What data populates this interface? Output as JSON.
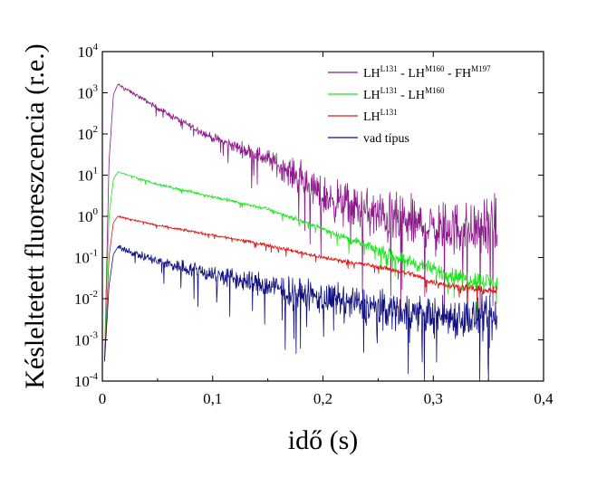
{
  "chart_data": {
    "type": "line",
    "title": "",
    "xlabel": "idő (s)",
    "ylabel": "Késleltetett fluoreszcencia (r.e.)",
    "xlim": [
      0,
      0.4
    ],
    "ylim": [
      0.0001,
      10000
    ],
    "y_scale": "log",
    "x_ticks": [
      {
        "value": 0,
        "label": "0"
      },
      {
        "value": 0.1,
        "label": "0,1"
      },
      {
        "value": 0.2,
        "label": "0,2"
      },
      {
        "value": 0.3,
        "label": "0,3"
      },
      {
        "value": 0.4,
        "label": "0,4"
      }
    ],
    "y_ticks": [
      {
        "value": 0.0001,
        "base": "10",
        "exp": "-4"
      },
      {
        "value": 0.001,
        "base": "10",
        "exp": "-3"
      },
      {
        "value": 0.01,
        "base": "10",
        "exp": "-2"
      },
      {
        "value": 0.1,
        "base": "10",
        "exp": "-1"
      },
      {
        "value": 1,
        "base": "10",
        "exp": "0"
      },
      {
        "value": 10,
        "base": "10",
        "exp": "1"
      },
      {
        "value": 100,
        "base": "10",
        "exp": "2"
      },
      {
        "value": 1000,
        "base": "10",
        "exp": "3"
      },
      {
        "value": 10000,
        "base": "10",
        "exp": "4"
      }
    ],
    "grid": false,
    "legend_position": "top-right",
    "series": [
      {
        "name": "LH<sup>L131</sup> - LH<sup>M160</sup> - FH<sup>M197</sup>",
        "legend_parts": [
          {
            "text": "LH",
            "sup": false
          },
          {
            "text": "L131",
            "sup": true
          },
          {
            "text": " - LH",
            "sup": false
          },
          {
            "text": "M160",
            "sup": true
          },
          {
            "text": " - FH",
            "sup": false
          },
          {
            "text": "M197",
            "sup": true
          }
        ],
        "color": "#8b1a8b",
        "points": [
          [
            0.002,
            0.0003
          ],
          [
            0.006,
            20
          ],
          [
            0.01,
            900
          ],
          [
            0.014,
            1600
          ],
          [
            0.03,
            900
          ],
          [
            0.06,
            300
          ],
          [
            0.1,
            80
          ],
          [
            0.15,
            25
          ],
          [
            0.18,
            8
          ],
          [
            0.2,
            3
          ],
          [
            0.25,
            1
          ],
          [
            0.3,
            0.5
          ],
          [
            0.33,
            0.5
          ],
          [
            0.358,
            0.5
          ]
        ],
        "noise_decades": [
          [
            0.014,
            0.05
          ],
          [
            0.1,
            0.15
          ],
          [
            0.15,
            0.35
          ],
          [
            0.2,
            0.7
          ],
          [
            0.25,
            0.9
          ],
          [
            0.358,
            1.0
          ]
        ]
      },
      {
        "name": "LH<sup>L131</sup> - LH<sup>M160</sup>",
        "legend_parts": [
          {
            "text": "LH",
            "sup": false
          },
          {
            "text": "L131",
            "sup": true
          },
          {
            "text": " - LH",
            "sup": false
          },
          {
            "text": "M160",
            "sup": true
          }
        ],
        "color": "#1fe51f",
        "points": [
          [
            0.002,
            0.0005
          ],
          [
            0.006,
            1
          ],
          [
            0.01,
            8
          ],
          [
            0.014,
            12
          ],
          [
            0.05,
            6
          ],
          [
            0.1,
            3
          ],
          [
            0.15,
            1.5
          ],
          [
            0.2,
            0.5
          ],
          [
            0.25,
            0.15
          ],
          [
            0.3,
            0.05
          ],
          [
            0.33,
            0.03
          ],
          [
            0.358,
            0.025
          ]
        ],
        "noise_decades": [
          [
            0.014,
            0.03
          ],
          [
            0.2,
            0.08
          ],
          [
            0.28,
            0.25
          ],
          [
            0.358,
            0.35
          ]
        ]
      },
      {
        "name": "LH<sup>L131</sup>",
        "legend_parts": [
          {
            "text": "LH",
            "sup": false
          },
          {
            "text": "L131",
            "sup": true
          }
        ],
        "color": "#e01818",
        "points": [
          [
            0.002,
            0.0003
          ],
          [
            0.006,
            0.1
          ],
          [
            0.01,
            0.7
          ],
          [
            0.014,
            1.0
          ],
          [
            0.05,
            0.6
          ],
          [
            0.1,
            0.35
          ],
          [
            0.15,
            0.2
          ],
          [
            0.2,
            0.1
          ],
          [
            0.25,
            0.06
          ],
          [
            0.28,
            0.04
          ],
          [
            0.3,
            0.025
          ],
          [
            0.33,
            0.018
          ],
          [
            0.358,
            0.015
          ]
        ],
        "noise_decades": [
          [
            0.014,
            0.03
          ],
          [
            0.25,
            0.08
          ],
          [
            0.358,
            0.15
          ]
        ]
      },
      {
        "name": "vad típus",
        "legend_parts": [
          {
            "text": "vad típus",
            "sup": false
          }
        ],
        "color": "#101080",
        "points": [
          [
            0.002,
            0.0003
          ],
          [
            0.006,
            0.02
          ],
          [
            0.01,
            0.12
          ],
          [
            0.014,
            0.18
          ],
          [
            0.05,
            0.08
          ],
          [
            0.1,
            0.04
          ],
          [
            0.15,
            0.02
          ],
          [
            0.2,
            0.01
          ],
          [
            0.25,
            0.006
          ],
          [
            0.3,
            0.004
          ],
          [
            0.358,
            0.003
          ]
        ],
        "noise_decades": [
          [
            0.014,
            0.08
          ],
          [
            0.05,
            0.2
          ],
          [
            0.1,
            0.35
          ],
          [
            0.2,
            0.6
          ],
          [
            0.358,
            0.8
          ]
        ]
      }
    ]
  }
}
